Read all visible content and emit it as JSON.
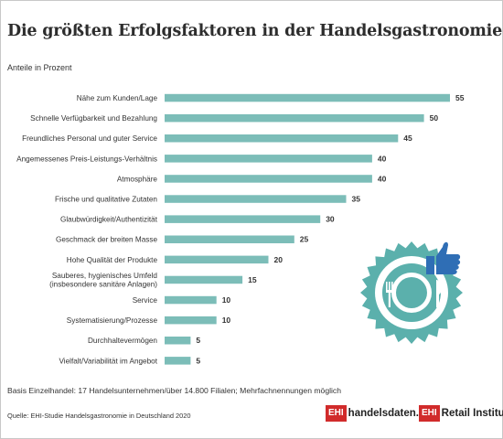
{
  "title": "Die größten Erfolgsfaktoren in der Handelsgastronomie",
  "subtitle": "Anteile in Prozent",
  "basis_note": "Basis Einzelhandel: 17 Handelsunternehmen/über 14.800 Filialen; Mehrfachnennungen möglich",
  "source": "Quelle: EHI-Studie Handelsgastronomie in Deutschland 2020",
  "logos": {
    "handelsdaten": {
      "box": "EHI",
      "text": "handelsdaten.de"
    },
    "retail_institute": {
      "box": "EHI",
      "text": "Retail Institute",
      "mark": "®"
    }
  },
  "colors": {
    "bar": "#7cbdb8",
    "accent": "#d12b2b",
    "illustration": "#5bb0ac",
    "thumb": "#2f6eb5"
  },
  "illustration": {
    "icons": [
      "plate-icon",
      "fork-icon",
      "knife-icon",
      "thumbs-up-icon"
    ]
  },
  "chart_data": {
    "type": "bar",
    "orientation": "horizontal",
    "categories": [
      [
        "Nähe zum Kunden/Lage"
      ],
      [
        "Schnelle Verfügbarkeit und Bezahlung"
      ],
      [
        "Freundliches Personal und guter Service"
      ],
      [
        "Angemessenes Preis-Leistungs-Verhältnis"
      ],
      [
        "Atmosphäre"
      ],
      [
        "Frische und qualitative Zutaten"
      ],
      [
        "Glaubwürdigkeit/Authentizität"
      ],
      [
        "Geschmack der breiten Masse"
      ],
      [
        "Hohe Qualität der Produkte"
      ],
      [
        "Sauberes, hygienisches Umfeld",
        "(insbesondere sanitäre Anlagen)"
      ],
      [
        "Service"
      ],
      [
        "Systematisierung/Prozesse"
      ],
      [
        "Durchhaltevermögen"
      ],
      [
        "Vielfalt/Variabilität im Angebot"
      ]
    ],
    "values": [
      55,
      50,
      45,
      40,
      40,
      35,
      30,
      25,
      20,
      15,
      10,
      10,
      5,
      5
    ],
    "xlim": [
      0,
      55
    ],
    "grid": false,
    "legend": false,
    "data_labels": true
  }
}
